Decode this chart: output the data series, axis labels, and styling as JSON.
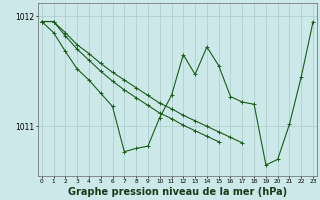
{
  "bg_color": "#cce8e8",
  "grid_color": "#aacccc",
  "line_color": "#1a5c1a",
  "xlabel": "Graphe pression niveau de la mer (hPa)",
  "xlabel_fontsize": 7.0,
  "yticks": [
    1011,
    1012
  ],
  "xlim": [
    -0.3,
    23.3
  ],
  "ylim": [
    1010.55,
    1012.12
  ],
  "hours": [
    0,
    1,
    2,
    3,
    4,
    5,
    6,
    7,
    8,
    9,
    10,
    11,
    12,
    13,
    14,
    15,
    16,
    17,
    18,
    19,
    20,
    21,
    22,
    23
  ],
  "main_y": [
    1011.95,
    1011.85,
    1011.68,
    1011.52,
    1011.42,
    1011.3,
    1011.18,
    1010.77,
    1010.8,
    1010.82,
    1011.08,
    1011.28,
    1011.65,
    1011.47,
    1011.72,
    1011.55,
    1011.27,
    1011.22,
    1011.2,
    1010.65,
    1010.7,
    1011.02,
    1011.45,
    1011.95
  ],
  "line_a_x": [
    0,
    1,
    2,
    3,
    4,
    5,
    6,
    7,
    8,
    9,
    10,
    11,
    12,
    13,
    14,
    15
  ],
  "line_a_y": [
    1011.95,
    1011.95,
    1011.82,
    1011.7,
    1011.6,
    1011.5,
    1011.41,
    1011.33,
    1011.26,
    1011.19,
    1011.12,
    1011.07,
    1011.01,
    1010.96,
    1010.91,
    1010.86
  ],
  "line_b_x": [
    0,
    1,
    2,
    3,
    4,
    5,
    6,
    7,
    8,
    9,
    10,
    11,
    12,
    13,
    14,
    15,
    16,
    17
  ],
  "line_b_y": [
    1011.95,
    1011.95,
    1011.85,
    1011.74,
    1011.66,
    1011.57,
    1011.49,
    1011.42,
    1011.35,
    1011.28,
    1011.21,
    1011.16,
    1011.1,
    1011.05,
    1011.0,
    1010.95,
    1010.9,
    1010.85
  ]
}
